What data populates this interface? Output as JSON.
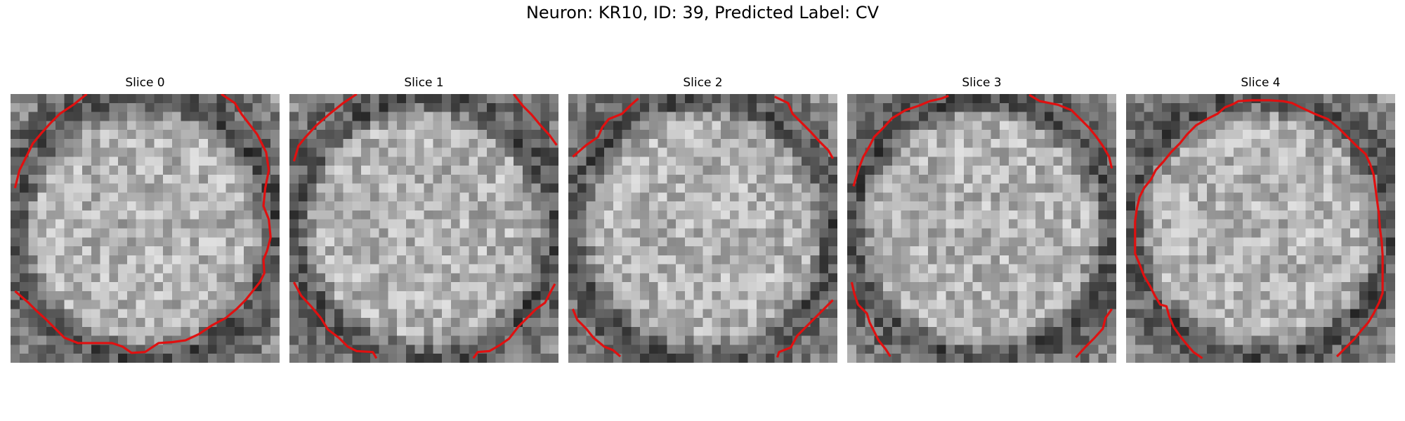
{
  "figure": {
    "title": "Neuron: KR10, ID: 39, Predicted Label: CV",
    "grid_size": 30,
    "contour_color": "#e01010",
    "colormap": "gray",
    "panels": [
      {
        "title": "Slice 0",
        "seed": 11,
        "contour": [
          [
            [
              8.5,
              0
            ],
            [
              7,
              1.2
            ],
            [
              5.5,
              2.2
            ],
            [
              4.5,
              3.2
            ],
            [
              3.5,
              4.3
            ],
            [
              2.5,
              5.5
            ],
            [
              2,
              6.5
            ],
            [
              1.5,
              7.5
            ],
            [
              1,
              8.5
            ],
            [
              0.5,
              10.5
            ]
          ],
          [
            [
              23.5,
              0
            ],
            [
              25,
              1
            ],
            [
              25.8,
              2.3
            ],
            [
              26.5,
              3.2
            ],
            [
              27.5,
              4.5
            ],
            [
              28.5,
              6.5
            ],
            [
              28.8,
              8.5
            ],
            [
              28.4,
              10.5
            ],
            [
              28.2,
              12.5
            ],
            [
              28.8,
              14
            ],
            [
              29,
              16
            ],
            [
              28.6,
              17.5
            ],
            [
              28.2,
              18.5
            ],
            [
              28.3,
              20
            ],
            [
              27.8,
              21
            ],
            [
              27,
              22
            ],
            [
              26.2,
              23
            ],
            [
              25.2,
              24
            ],
            [
              24,
              25
            ],
            [
              22.5,
              25.8
            ],
            [
              21,
              26.8
            ],
            [
              19.5,
              27.5
            ],
            [
              18,
              27.7
            ],
            [
              16.5,
              27.8
            ],
            [
              15,
              28.8
            ],
            [
              13.5,
              28.9
            ],
            [
              12.5,
              28.2
            ],
            [
              11.3,
              27.8
            ],
            [
              9.5,
              27.8
            ],
            [
              7.5,
              27.8
            ],
            [
              6,
              27.2
            ],
            [
              5,
              26.2
            ],
            [
              4,
              25.2
            ],
            [
              3,
              24.3
            ],
            [
              2,
              23.3
            ],
            [
              0.5,
              22
            ]
          ]
        ]
      },
      {
        "title": "Slice 1",
        "seed": 23,
        "contour": [
          [
            [
              7.5,
              0
            ],
            [
              6,
              1
            ],
            [
              4.5,
              2.2
            ],
            [
              3,
              3.5
            ],
            [
              1.8,
              4.8
            ],
            [
              1,
              5.8
            ],
            [
              0.5,
              7.5
            ]
          ],
          [
            [
              25,
              0
            ],
            [
              26,
              1.3
            ],
            [
              27,
              2.3
            ],
            [
              28,
              3.5
            ],
            [
              29,
              4.6
            ],
            [
              29.8,
              5.7
            ]
          ],
          [
            [
              0.5,
              21
            ],
            [
              1.3,
              22.5
            ],
            [
              2.5,
              23.8
            ],
            [
              3.5,
              25
            ],
            [
              4.3,
              26.3
            ],
            [
              5.5,
              27.2
            ],
            [
              6.5,
              28.2
            ],
            [
              7.5,
              28.7
            ],
            [
              9.3,
              28.8
            ],
            [
              9.7,
              29.5
            ]
          ],
          [
            [
              20.5,
              29.5
            ],
            [
              21,
              28.8
            ],
            [
              22.3,
              28.7
            ],
            [
              23.5,
              28
            ],
            [
              24.5,
              27.3
            ],
            [
              25.5,
              26
            ],
            [
              26.5,
              25
            ],
            [
              27.5,
              24
            ],
            [
              28.5,
              23.3
            ],
            [
              29,
              22.3
            ],
            [
              29.6,
              21.2
            ]
          ]
        ]
      },
      {
        "title": "Slice 2",
        "seed": 37,
        "contour": [
          [
            [
              7.8,
              0.5
            ],
            [
              7,
              1.2
            ],
            [
              6,
              2.2
            ],
            [
              4.5,
              2.8
            ],
            [
              3.8,
              3.7
            ],
            [
              3.3,
              4.8
            ],
            [
              2,
              5.7
            ],
            [
              0.5,
              7
            ]
          ],
          [
            [
              23,
              0.3
            ],
            [
              24.5,
              1
            ],
            [
              25,
              2.2
            ],
            [
              26,
              3.2
            ],
            [
              27,
              4.2
            ],
            [
              28,
              5.3
            ],
            [
              29,
              6.3
            ],
            [
              29.5,
              7.2
            ]
          ],
          [
            [
              0.5,
              24
            ],
            [
              1,
              25.2
            ],
            [
              2,
              26.2
            ],
            [
              2.8,
              27.2
            ],
            [
              4,
              28.2
            ],
            [
              5,
              28.6
            ],
            [
              5.8,
              29.3
            ]
          ],
          [
            [
              23.3,
              29.4
            ],
            [
              23.5,
              28.8
            ],
            [
              24.8,
              28.3
            ],
            [
              25.5,
              27
            ],
            [
              26.5,
              26
            ],
            [
              27.5,
              25
            ],
            [
              28.5,
              24
            ],
            [
              29.5,
              23
            ]
          ]
        ]
      },
      {
        "title": "Slice 3",
        "seed": 53,
        "contour": [
          [
            [
              0.7,
              10.3
            ],
            [
              1,
              9.3
            ],
            [
              1.3,
              8.3
            ],
            [
              1.8,
              7
            ],
            [
              2.5,
              5.8
            ],
            [
              3,
              4.8
            ],
            [
              4,
              3.8
            ],
            [
              5,
              2.7
            ],
            [
              6.5,
              1.8
            ],
            [
              8,
              1.3
            ],
            [
              9.2,
              0.8
            ],
            [
              10.5,
              0.5
            ],
            [
              11.3,
              0.2
            ]
          ],
          [
            [
              20.3,
              0.1
            ],
            [
              21.5,
              0.8
            ],
            [
              23.5,
              1.2
            ],
            [
              25,
              1.8
            ],
            [
              26,
              2.8
            ],
            [
              27,
              3.8
            ],
            [
              27.8,
              4.8
            ],
            [
              28.5,
              5.8
            ],
            [
              29.2,
              7
            ],
            [
              29.5,
              8.3
            ]
          ],
          [
            [
              0.5,
              21
            ],
            [
              0.8,
              22.3
            ],
            [
              1.2,
              23.5
            ],
            [
              2.2,
              24.5
            ],
            [
              2.5,
              25.5
            ],
            [
              3,
              26.5
            ],
            [
              3.5,
              27.5
            ],
            [
              4.3,
              28.5
            ],
            [
              4.8,
              29.3
            ]
          ],
          [
            [
              25.5,
              29.4
            ],
            [
              26.5,
              28.3
            ],
            [
              27.5,
              27.3
            ],
            [
              28.5,
              26.2
            ],
            [
              28.8,
              25
            ],
            [
              29.5,
              24
            ]
          ]
        ]
      },
      {
        "title": "Slice 4",
        "seed": 71,
        "contour": [
          [
            [
              8.5,
              29.5
            ],
            [
              7.5,
              28.8
            ],
            [
              6.8,
              28
            ],
            [
              6,
              27
            ],
            [
              5.3,
              26
            ],
            [
              4.8,
              24.8
            ],
            [
              4.5,
              23.7
            ],
            [
              3.8,
              23.5
            ],
            [
              3.2,
              22.5
            ],
            [
              2.7,
              21.5
            ],
            [
              2,
              20.3
            ],
            [
              1.5,
              19
            ],
            [
              1,
              17.8
            ],
            [
              1,
              16
            ],
            [
              1,
              14.2
            ],
            [
              1.2,
              12.8
            ],
            [
              1.5,
              11.5
            ],
            [
              2,
              10.5
            ],
            [
              2.8,
              9.5
            ],
            [
              3.3,
              8.5
            ],
            [
              4.2,
              7.5
            ],
            [
              5,
              6.5
            ],
            [
              6,
              5.5
            ],
            [
              6.8,
              4.5
            ],
            [
              7.8,
              3.5
            ],
            [
              9,
              2.8
            ],
            [
              10.2,
              2.2
            ],
            [
              11,
              1.5
            ],
            [
              12,
              1.1
            ],
            [
              12.5,
              0.8
            ],
            [
              14,
              0.7
            ],
            [
              16,
              0.7
            ],
            [
              17.5,
              0.8
            ],
            [
              18.5,
              1
            ],
            [
              19.5,
              1.5
            ],
            [
              21,
              2.2
            ],
            [
              22.5,
              2.8
            ],
            [
              23.7,
              3.8
            ],
            [
              24.7,
              4.8
            ],
            [
              25.7,
              5.8
            ],
            [
              26.7,
              6.7
            ],
            [
              27.2,
              7.8
            ],
            [
              27.6,
              9
            ],
            [
              27.8,
              10.5
            ],
            [
              28,
              12
            ],
            [
              28.2,
              13.5
            ],
            [
              28.3,
              15
            ],
            [
              28.5,
              16.5
            ],
            [
              28.6,
              18
            ],
            [
              28.6,
              19.5
            ],
            [
              28.6,
              21
            ],
            [
              28.6,
              22.2
            ],
            [
              28.2,
              23.3
            ],
            [
              27.6,
              24.5
            ],
            [
              27,
              25.5
            ],
            [
              26.3,
              26.3
            ],
            [
              25.5,
              27.3
            ],
            [
              24.5,
              28.3
            ],
            [
              23.5,
              29.3
            ]
          ]
        ]
      }
    ]
  }
}
